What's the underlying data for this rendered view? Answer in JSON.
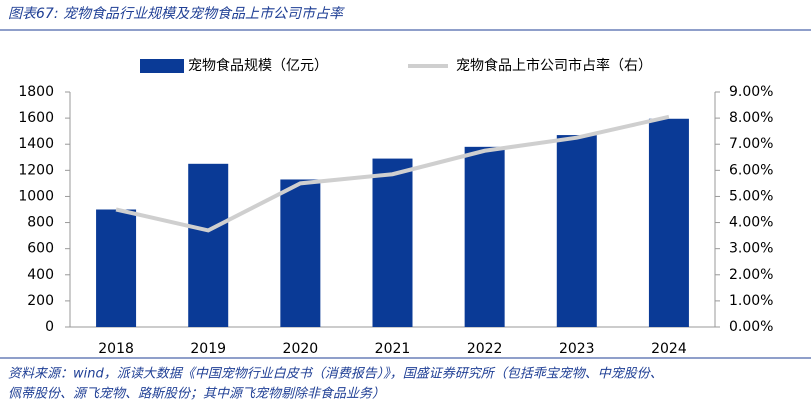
{
  "chart_data": {
    "type": "bar",
    "title": "图表67: 宠物食品行业规模及宠物食品上市公司市占率",
    "categories": [
      "2018",
      "2019",
      "2020",
      "2021",
      "2022",
      "2023",
      "2024"
    ],
    "series": [
      {
        "name": "宠物食品规模（亿元）",
        "type": "bar",
        "color": "#0a3a96",
        "values": [
          900,
          1250,
          1130,
          1290,
          1380,
          1470,
          1595
        ]
      },
      {
        "name": "宠物食品上市公司市占率（右）",
        "type": "line",
        "axis": "y2",
        "color": "#cfcfcf",
        "values": [
          4.5,
          3.7,
          5.5,
          5.85,
          6.75,
          7.25,
          8.05
        ]
      }
    ],
    "ylim": [
      0,
      1800
    ],
    "yticks": [
      0,
      200,
      400,
      600,
      800,
      1000,
      1200,
      1400,
      1600,
      1800
    ],
    "y2lim": [
      0,
      9
    ],
    "y2ticks": [
      {
        "value": 0,
        "label": "0.00%"
      },
      {
        "value": 1,
        "label": "1.00%"
      },
      {
        "value": 2,
        "label": "2.00%"
      },
      {
        "value": 3,
        "label": "3.00%"
      },
      {
        "value": 4,
        "label": "4.00%"
      },
      {
        "value": 5,
        "label": "5.00%"
      },
      {
        "value": 6,
        "label": "6.00%"
      },
      {
        "value": 7,
        "label": "7.00%"
      },
      {
        "value": 8,
        "label": "8.00%"
      },
      {
        "value": 9,
        "label": "9.00%"
      }
    ],
    "grid": false,
    "legend": "top",
    "source": [
      "资料来源：wind，派读大数据《中国宠物行业白皮书（消费报告）》，国盛证券研究所（包括乖宝宠物、中宠股份、",
      "佩蒂股份、源飞宠物、路斯股份；其中源飞宠物剔除非食品业务）"
    ]
  }
}
